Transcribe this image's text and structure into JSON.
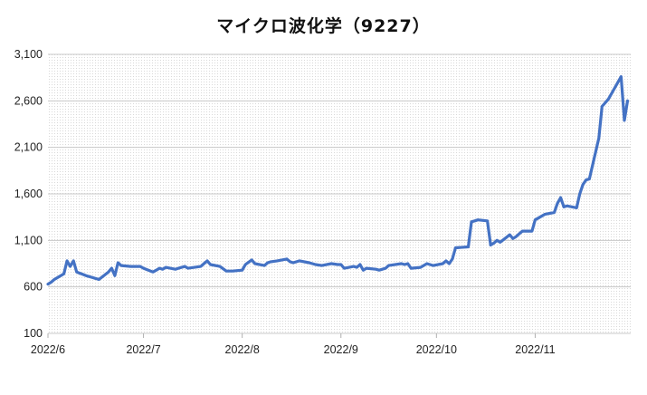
{
  "chart_data": {
    "type": "line",
    "title": "マイクロ波化学（9227）",
    "xlabel": "",
    "ylabel": "",
    "ylim": [
      100,
      3100
    ],
    "yticks": [
      100,
      600,
      1100,
      1600,
      2100,
      2600,
      3100
    ],
    "ytick_labels": [
      "100",
      "600",
      "1,100",
      "1,600",
      "2,100",
      "2,600",
      "3,100"
    ],
    "xlim": [
      "2022-06-01",
      "2022-12-01"
    ],
    "xtick_labels": [
      "2022/6",
      "2022/7",
      "2022/8",
      "2022/9",
      "2022/10",
      "2022/11"
    ],
    "xtick_dates": [
      "2022-06-01",
      "2022-07-01",
      "2022-08-01",
      "2022-09-01",
      "2022-10-01",
      "2022-11-01"
    ],
    "grid": true,
    "line_color": "#4472c4",
    "series": [
      {
        "x": [
          "2022-06-01",
          "2022-06-02",
          "2022-06-03",
          "2022-06-06",
          "2022-06-07",
          "2022-06-08",
          "2022-06-09",
          "2022-06-10",
          "2022-06-13",
          "2022-06-15",
          "2022-06-16",
          "2022-06-17",
          "2022-06-20",
          "2022-06-21",
          "2022-06-22",
          "2022-06-23",
          "2022-06-24",
          "2022-06-27",
          "2022-06-28",
          "2022-06-29",
          "2022-06-30",
          "2022-07-01",
          "2022-07-04",
          "2022-07-05",
          "2022-07-06",
          "2022-07-07",
          "2022-07-08",
          "2022-07-11",
          "2022-07-12",
          "2022-07-13",
          "2022-07-14",
          "2022-07-15",
          "2022-07-19",
          "2022-07-20",
          "2022-07-21",
          "2022-07-22",
          "2022-07-25",
          "2022-07-27",
          "2022-07-29",
          "2022-08-01",
          "2022-08-02",
          "2022-08-04",
          "2022-08-05",
          "2022-08-08",
          "2022-08-09",
          "2022-08-10",
          "2022-08-12",
          "2022-08-15",
          "2022-08-16",
          "2022-08-17",
          "2022-08-19",
          "2022-08-22",
          "2022-08-24",
          "2022-08-26",
          "2022-08-29",
          "2022-08-31",
          "2022-09-01",
          "2022-09-02",
          "2022-09-05",
          "2022-09-06",
          "2022-09-07",
          "2022-09-08",
          "2022-09-09",
          "2022-09-12",
          "2022-09-13",
          "2022-09-14",
          "2022-09-15",
          "2022-09-16",
          "2022-09-20",
          "2022-09-21",
          "2022-09-22",
          "2022-09-23",
          "2022-09-26",
          "2022-09-28",
          "2022-09-30",
          "2022-10-03",
          "2022-10-04",
          "2022-10-05",
          "2022-10-06",
          "2022-10-07",
          "2022-10-11",
          "2022-10-12",
          "2022-10-13",
          "2022-10-14",
          "2022-10-17",
          "2022-10-18",
          "2022-10-19",
          "2022-10-20",
          "2022-10-21",
          "2022-10-24",
          "2022-10-25",
          "2022-10-26",
          "2022-10-27",
          "2022-10-28",
          "2022-10-31",
          "2022-11-01",
          "2022-11-02",
          "2022-11-04",
          "2022-11-07",
          "2022-11-08",
          "2022-11-09",
          "2022-11-10",
          "2022-11-11",
          "2022-11-14",
          "2022-11-15",
          "2022-11-16",
          "2022-11-17",
          "2022-11-18",
          "2022-11-21",
          "2022-11-22",
          "2022-11-24",
          "2022-11-25",
          "2022-11-28",
          "2022-11-29",
          "2022-11-30"
        ],
        "y": [
          630,
          650,
          680,
          740,
          880,
          820,
          880,
          760,
          720,
          700,
          690,
          680,
          760,
          800,
          720,
          860,
          830,
          820,
          820,
          820,
          820,
          800,
          760,
          780,
          800,
          790,
          810,
          790,
          800,
          810,
          820,
          800,
          820,
          850,
          880,
          840,
          820,
          770,
          770,
          780,
          840,
          890,
          850,
          830,
          860,
          870,
          880,
          900,
          870,
          860,
          880,
          860,
          840,
          830,
          850,
          840,
          840,
          800,
          820,
          810,
          840,
          780,
          800,
          790,
          780,
          790,
          800,
          830,
          850,
          840,
          850,
          800,
          810,
          850,
          830,
          850,
          880,
          850,
          900,
          1020,
          1030,
          1300,
          1310,
          1320,
          1310,
          1050,
          1070,
          1100,
          1080,
          1160,
          1120,
          1140,
          1170,
          1200,
          1200,
          1320,
          1340,
          1380,
          1400,
          1500,
          1560,
          1460,
          1470,
          1450,
          1600,
          1700,
          1750,
          1760,
          2200,
          2540,
          2620,
          2680,
          2860,
          2390,
          2600
        ]
      }
    ]
  }
}
